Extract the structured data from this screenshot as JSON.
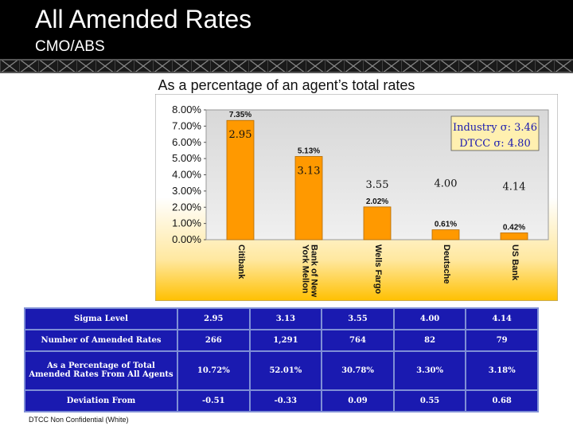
{
  "slide": {
    "title": "All Amended Rates",
    "subtitle": "CMO/ABS",
    "footer": "DTCC Non Confidential (White)"
  },
  "colors": {
    "bar": "#ff9900",
    "bar_stroke": "#b36b00",
    "table_bg": "#1a1ab0",
    "legend_bg": "#fff0b0",
    "legend_text": "#1a1ab0"
  },
  "chart_data": {
    "type": "bar",
    "title": "As a percentage of an agent’s total rates",
    "categories": [
      "Citibank",
      "Bank of New York Mellon",
      "Wells Fargo",
      "Deutsche",
      "US Bank"
    ],
    "category_lines": [
      [
        "Citibank"
      ],
      [
        "Bank of New",
        "York Mellon"
      ],
      [
        "Wells Fargo"
      ],
      [
        "Deutsche"
      ],
      [
        "US Bank"
      ]
    ],
    "values": [
      7.35,
      5.13,
      2.02,
      0.61,
      0.42
    ],
    "value_labels": [
      "7.35%",
      "5.13%",
      "2.02%",
      "0.61%",
      "0.42%"
    ],
    "sigma_labels": [
      "2.95",
      "3.13",
      "3.55",
      "4.00",
      "4.14"
    ],
    "ylim": [
      0,
      8
    ],
    "yticks": [
      "0.00%",
      "1.00%",
      "2.00%",
      "3.00%",
      "4.00%",
      "5.00%",
      "6.00%",
      "7.00%",
      "8.00%"
    ],
    "legend": [
      "Industry σ: 3.46",
      "DTCC σ: 4.80"
    ],
    "legend_position": "top-right",
    "grid": false
  },
  "table": {
    "rows": [
      {
        "label": "Sigma Level",
        "cells": [
          "2.95",
          "3.13",
          "3.55",
          "4.00",
          "4.14"
        ]
      },
      {
        "label": "Number of Amended Rates",
        "cells": [
          "266",
          "1,291",
          "764",
          "82",
          "79"
        ]
      },
      {
        "label": "As a Percentage of Total Amended Rates From All Agents",
        "cells": [
          "10.72%",
          "52.01%",
          "30.78%",
          "3.30%",
          "3.18%"
        ]
      },
      {
        "label": "Deviation From",
        "cells": [
          "-0.51",
          "-0.33",
          "0.09",
          "0.55",
          "0.68"
        ]
      }
    ]
  }
}
